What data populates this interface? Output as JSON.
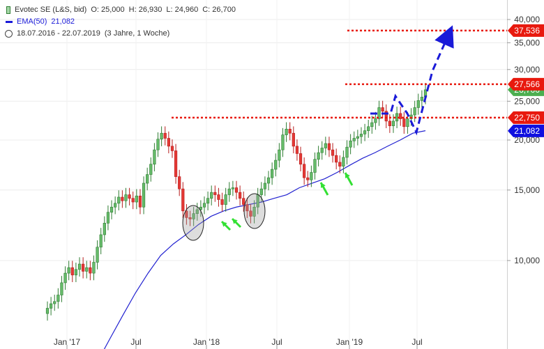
{
  "legend": {
    "title": "Evotec SE (L&S, bid)",
    "open_label": "O: 25,000",
    "high_label": "H: 26,930",
    "low_label": "L: 24,960",
    "close_label": "C: 26,700",
    "ema_label": "EMA(50)",
    "ema_value": "21,082",
    "range": "18.07.2016 - 22.07.2019",
    "span": "(3 Jahre, 1 Woche)"
  },
  "chart_data": {
    "type": "candlestick",
    "y_scale": "log",
    "ylim": [
      7.5,
      42
    ],
    "y_ticks": [
      {
        "v": 40,
        "label": "40,000"
      },
      {
        "v": 35,
        "label": "35,000"
      },
      {
        "v": 30,
        "label": "30,000"
      },
      {
        "v": 25,
        "label": "25,000"
      },
      {
        "v": 20,
        "label": "20,000"
      },
      {
        "v": 15,
        "label": "15,000"
      },
      {
        "v": 10,
        "label": "10,000"
      }
    ],
    "x_ticks": [
      "Jan '17",
      "Jul",
      "Jan '18",
      "Jul",
      "Jan '19",
      "Jul"
    ],
    "candles_close": [
      7.6,
      7.8,
      7.9,
      8.2,
      8.8,
      9.3,
      9.6,
      9.2,
      9.5,
      9.8,
      9.4,
      9.6,
      9.3,
      9.9,
      10.8,
      11.6,
      12.4,
      13.2,
      13.6,
      13.9,
      14.4,
      14.1,
      14.6,
      14.3,
      14.0,
      14.5,
      13.6,
      15.6,
      16.4,
      17.4,
      18.9,
      20.1,
      20.8,
      20.2,
      19.3,
      18.8,
      16.2,
      15.1,
      13.3,
      12.8,
      12.7,
      13.1,
      13.4,
      13.6,
      13.9,
      14.3,
      14.8,
      14.6,
      14.2,
      13.8,
      14.6,
      15.1,
      15.2,
      14.8,
      14.3,
      13.8,
      13.3,
      12.9,
      13.6,
      14.6,
      15.1,
      15.6,
      16.1,
      16.9,
      17.8,
      18.9,
      20.6,
      21.3,
      20.8,
      19.3,
      18.5,
      17.4,
      16.1,
      15.9,
      16.6,
      17.9,
      18.6,
      19.1,
      19.6,
      18.9,
      18.3,
      17.6,
      17.2,
      18.1,
      19.2,
      19.9,
      20.2,
      20.4,
      20.7,
      21.1,
      21.6,
      22.1,
      22.6,
      24.1,
      23.6,
      22.3,
      21.7,
      22.3,
      23.3,
      22.6,
      21.6,
      22.6,
      23.1,
      24.1,
      25.1,
      25.6,
      26.7
    ],
    "ema50_values": [
      5.6,
      6.4,
      7.3,
      8.3,
      9.3,
      10.3,
      11.0,
      11.6,
      12.3,
      12.9,
      13.3,
      13.6,
      13.8,
      14.0,
      14.3,
      14.6,
      15.2,
      15.6,
      16.0,
      16.6,
      17.3,
      18.0,
      18.6,
      19.3,
      20.0,
      20.8,
      21.1
    ],
    "annotations": [
      {
        "type": "hline",
        "value": 37.536,
        "label": "37,536",
        "color": "#e8190e"
      },
      {
        "type": "hline",
        "value": 27.566,
        "label": "27,566",
        "color": "#e8190e"
      },
      {
        "type": "hline",
        "value": 22.75,
        "label": "22,750",
        "color": "#e8190e"
      },
      {
        "type": "price_tag",
        "value": 21.082,
        "label": "21,082",
        "color": "#1010e0"
      },
      {
        "type": "price_tag",
        "value": 26.7,
        "label": "26,700",
        "color": "#4caf50"
      }
    ]
  }
}
